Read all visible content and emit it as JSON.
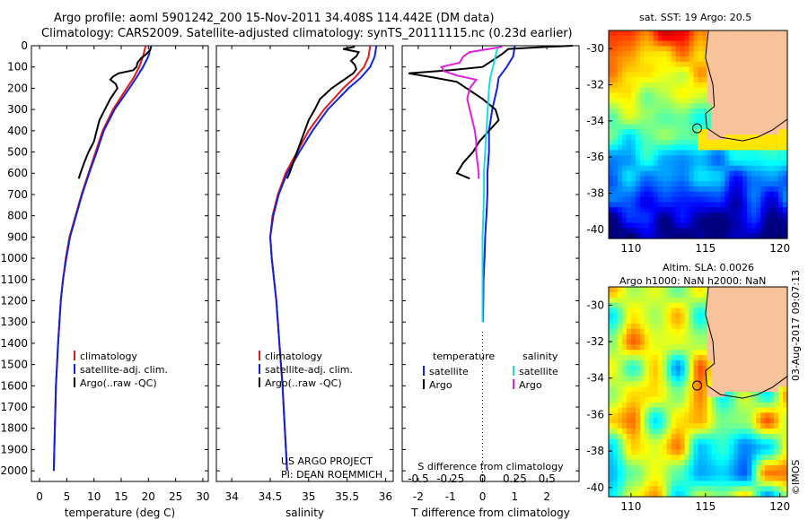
{
  "header": {
    "line1": "Argo profile: aoml 5901242_200 15-Nov-2011 34.408S 114.442E (DM data)",
    "line2": "Climatology: CARS2009. Satellite-adjusted climatology: synTS_20111115.nc (0.23d earlier)"
  },
  "colors": {
    "climatology": "#e0191c",
    "satellite": "#1022dd",
    "argo": "#000000",
    "argo_salinity_diff": "#e020e0",
    "satellite_salinity_diff": "#19dbe0"
  },
  "chart_data": [
    {
      "type": "line",
      "name": "temperature-profile",
      "xlabel": "temperature (deg C)",
      "ylabel": "",
      "xlim": [
        -1.5,
        31
      ],
      "ylim": [
        2050,
        0
      ],
      "xticks": [
        0,
        5,
        10,
        15,
        20,
        25,
        30
      ],
      "yticks": [
        0,
        100,
        200,
        300,
        400,
        500,
        600,
        700,
        800,
        900,
        1000,
        1100,
        1200,
        1300,
        1400,
        1500,
        1600,
        1700,
        1800,
        1900,
        2000
      ],
      "legend": {
        "placement": "lower-left",
        "entries": [
          "climatology",
          "satellite-adj. clim.",
          "Argo(..raw -QC)"
        ]
      },
      "series": [
        {
          "name": "climatology",
          "color": "#e0191c",
          "depth": [
            0,
            50,
            100,
            150,
            200,
            300,
            400,
            500,
            600,
            700,
            800,
            900,
            1000,
            1100,
            1200,
            1400,
            1600,
            1800,
            2000
          ],
          "values": [
            19.5,
            19,
            18.3,
            17.3,
            16,
            13.5,
            11.6,
            10.3,
            9,
            7.7,
            6.6,
            5.5,
            4.8,
            4.3,
            3.9,
            3.4,
            3.0,
            2.8,
            2.6
          ]
        },
        {
          "name": "satellite-adj. clim.",
          "color": "#1022dd",
          "depth": [
            0,
            50,
            100,
            150,
            200,
            300,
            400,
            500,
            600,
            700,
            800,
            900,
            1000,
            1100,
            1200,
            1400,
            1600,
            1800,
            2000
          ],
          "values": [
            20.5,
            20,
            19,
            17.8,
            16.5,
            13.8,
            11.8,
            10.5,
            9.1,
            7.8,
            6.7,
            5.6,
            4.9,
            4.3,
            3.9,
            3.4,
            3.0,
            2.8,
            2.6
          ]
        },
        {
          "name": "Argo(..raw -QC)",
          "color": "#000000",
          "depth": [
            5,
            20,
            40,
            60,
            80,
            100,
            115,
            130,
            145,
            160,
            180,
            200,
            250,
            300,
            350,
            400,
            450,
            500,
            550,
            600,
            625
          ],
          "values": [
            20.5,
            20.3,
            19.6,
            18.6,
            18.0,
            17.8,
            17.2,
            14.5,
            13.5,
            13.0,
            14.0,
            14.3,
            13,
            12,
            11,
            10.5,
            10,
            9,
            8.2,
            7.5,
            7.2
          ]
        }
      ]
    },
    {
      "type": "line",
      "name": "salinity-profile",
      "xlabel": "salinity",
      "ylabel": "",
      "xlim": [
        33.8,
        36.1
      ],
      "ylim": [
        2050,
        0
      ],
      "xticks": [
        34,
        34.5,
        35,
        35.5,
        36
      ],
      "legend": {
        "placement": "lower-left",
        "entries": [
          "climatology",
          "satellite-adj. clim.",
          "Argo(..raw -QC)"
        ]
      },
      "annotation": [
        "US ARGO PROJECT",
        "PI: DEAN ROEMMICH"
      ],
      "series": [
        {
          "name": "climatology",
          "color": "#e0191c",
          "depth": [
            0,
            50,
            100,
            150,
            200,
            300,
            400,
            500,
            600,
            700,
            800,
            900,
            1000,
            1200,
            1400,
            1600,
            1800,
            2000
          ],
          "values": [
            35.8,
            35.78,
            35.72,
            35.6,
            35.45,
            35.2,
            35.0,
            34.85,
            34.7,
            34.6,
            34.53,
            34.5,
            34.52,
            34.58,
            34.62,
            34.66,
            34.69,
            34.72
          ]
        },
        {
          "name": "satellite-adj. clim.",
          "color": "#1022dd",
          "depth": [
            0,
            50,
            100,
            150,
            200,
            300,
            400,
            500,
            600,
            700,
            800,
            900,
            1000,
            1200,
            1400,
            1600,
            1800,
            2000
          ],
          "values": [
            35.88,
            35.86,
            35.8,
            35.68,
            35.52,
            35.25,
            35.05,
            34.88,
            34.72,
            34.61,
            34.54,
            34.5,
            34.52,
            34.58,
            34.62,
            34.66,
            34.69,
            34.72
          ]
        },
        {
          "name": "Argo(..raw -QC)",
          "color": "#000000",
          "depth": [
            5,
            15,
            30,
            50,
            70,
            90,
            110,
            130,
            150,
            200,
            250,
            300,
            350,
            400,
            450,
            500,
            550,
            600,
            625
          ],
          "values": [
            35.6,
            35.45,
            35.65,
            35.62,
            35.55,
            35.6,
            35.62,
            35.58,
            35.5,
            35.3,
            35.15,
            35.08,
            35.0,
            34.95,
            34.9,
            34.85,
            34.8,
            34.75,
            34.72
          ]
        }
      ]
    },
    {
      "type": "line",
      "name": "difference-profile",
      "xlabel": "T difference from climatology",
      "xlabel_top": "S difference from climatology",
      "ylabel": "",
      "xlim": [
        -2.5,
        3.0
      ],
      "ylim": [
        2050,
        0
      ],
      "xticks_T": [
        -2,
        -1,
        0,
        1,
        2
      ],
      "xticks_S": [
        "-0.5",
        "-0.25",
        "0",
        "0.25",
        "0.5"
      ],
      "legend": {
        "placement": "lower",
        "temperature_header": "temperature",
        "salinity_header": "salinity",
        "entries": [
          "satellite",
          "Argo",
          "satellite",
          "Argo"
        ]
      },
      "series": [
        {
          "name": "temperature satellite",
          "color": "#1022dd",
          "depth": [
            0,
            50,
            100,
            150,
            200,
            300,
            400,
            500,
            600,
            700,
            800,
            900,
            1000,
            1100,
            1200,
            1300
          ],
          "values": [
            1.0,
            0.95,
            0.75,
            0.5,
            0.45,
            0.3,
            0.2,
            0.2,
            0.15,
            0.15,
            0.12,
            0.08,
            0.06,
            0.03,
            0.02,
            0.01
          ]
        },
        {
          "name": "temperature Argo",
          "color": "#000000",
          "depth": [
            0,
            5,
            15,
            40,
            70,
            100,
            115,
            130,
            150,
            170,
            200,
            250,
            300,
            350,
            400,
            450,
            500,
            550,
            600,
            625
          ],
          "values": [
            2.8,
            2.0,
            0.8,
            0.6,
            0.3,
            0.0,
            -1.0,
            -2.3,
            -1.5,
            -0.8,
            -0.5,
            0.0,
            0.4,
            0.5,
            0.2,
            -0.1,
            -0.3,
            -0.6,
            -0.8,
            -0.4
          ]
        },
        {
          "name": "salinity satellite",
          "color": "#19dbe0",
          "depth": [
            0,
            50,
            100,
            150,
            200,
            300,
            400,
            500,
            600,
            700,
            800,
            900,
            1000,
            1100,
            1200,
            1300
          ],
          "values": [
            0.12,
            0.1,
            0.08,
            0.06,
            0.05,
            0.04,
            0.03,
            0.02,
            0.01,
            0.01,
            0.005,
            0.0,
            0.0,
            0.0,
            0.0,
            0.0
          ]
        },
        {
          "name": "salinity Argo",
          "color": "#e020e0",
          "depth": [
            5,
            15,
            30,
            50,
            80,
            100,
            120,
            140,
            160,
            200,
            250,
            300,
            350,
            400,
            450,
            500,
            550,
            600,
            625
          ],
          "values": [
            0.15,
            0.05,
            -0.1,
            -0.15,
            -0.18,
            -0.32,
            -0.3,
            -0.2,
            -0.05,
            -0.1,
            -0.12,
            -0.1,
            -0.08,
            -0.06,
            -0.05,
            -0.05,
            -0.04,
            -0.03,
            -0.03
          ]
        }
      ]
    },
    {
      "type": "heatmap",
      "name": "sst-map",
      "title": "sat. SST: 19 Argo: 20.5",
      "xlim": [
        108.5,
        120.5
      ],
      "ylim": [
        -40.5,
        -29
      ],
      "xticks": [
        110,
        115,
        120
      ],
      "yticks": [
        -30,
        -32,
        -34,
        -36,
        -38,
        -40
      ],
      "argo_position": {
        "lon": 114.442,
        "lat": -34.408
      }
    },
    {
      "type": "heatmap",
      "name": "altimetry-map",
      "title": "Altim. SLA: 0.0026",
      "subtitle": "Argo h1000: NaN h2000: NaN",
      "xlim": [
        108.5,
        120.5
      ],
      "ylim": [
        -40.5,
        -29
      ],
      "xticks": [
        110,
        115,
        120
      ],
      "yticks": [
        -30,
        -32,
        -34,
        -36,
        -38,
        -40
      ],
      "argo_position": {
        "lon": 114.442,
        "lat": -34.408
      }
    }
  ],
  "credit": {
    "org": "©IMOS",
    "date": "03-Aug-2017 09:07:13"
  }
}
